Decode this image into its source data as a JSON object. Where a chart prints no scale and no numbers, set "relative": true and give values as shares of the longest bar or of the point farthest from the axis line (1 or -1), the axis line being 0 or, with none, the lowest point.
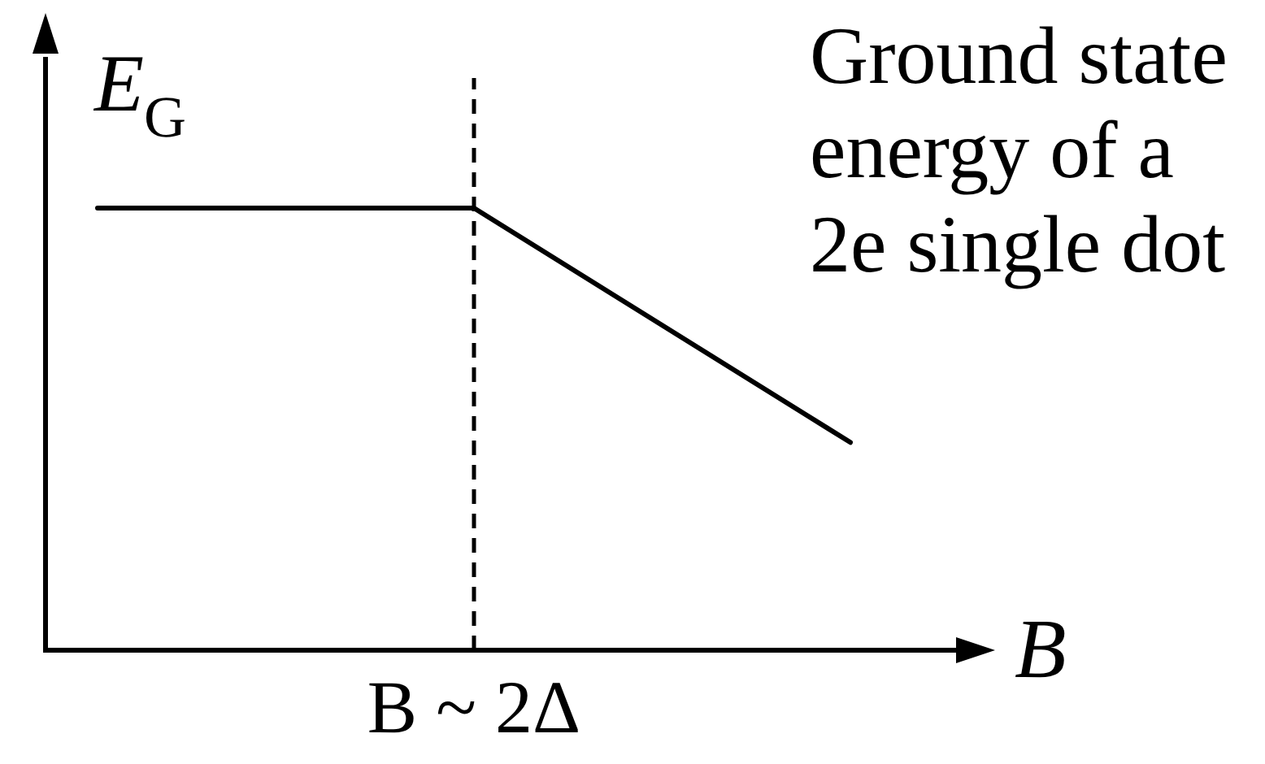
{
  "chart_data": {
    "type": "line",
    "title": "Ground state energy of a 2e single dot",
    "xlabel": "B",
    "ylabel": "E$_{G}$",
    "categories": [
      null,
      null,
      null
    ],
    "series": [
      {
        "color": "#000000",
        "values": [
          1,
          1,
          0.47
        ]
      }
    ],
    "relative": true,
    "grid": false,
    "marker": "none",
    "annotations": [
      "B ~ 2Δ"
    ]
  }
}
